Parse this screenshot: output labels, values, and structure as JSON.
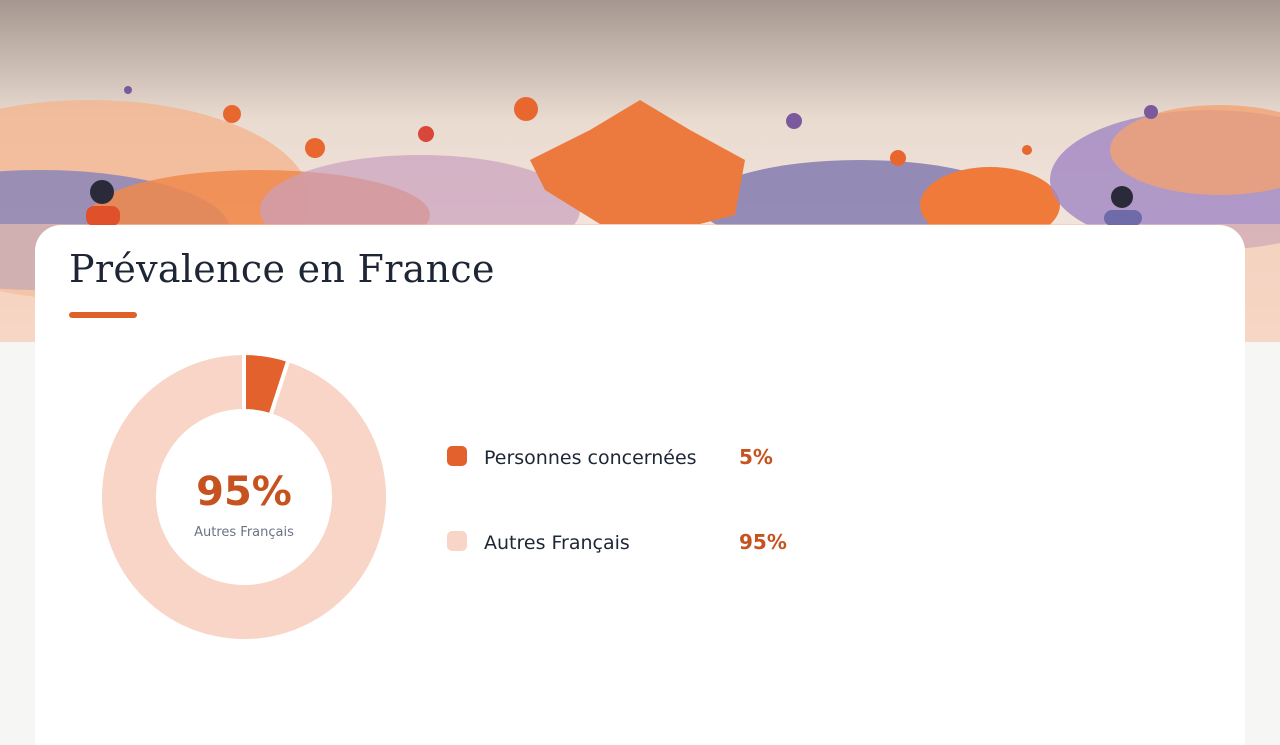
{
  "chart_data": {
    "type": "donut",
    "title": "Prévalence en France",
    "categories": [
      "Personnes concernées",
      "Autres Français"
    ],
    "values": [
      5,
      95
    ],
    "value_labels": [
      "5%",
      "95%"
    ],
    "colors": [
      "#e2612d",
      "#f8d5c7"
    ],
    "center_index": 1
  }
}
